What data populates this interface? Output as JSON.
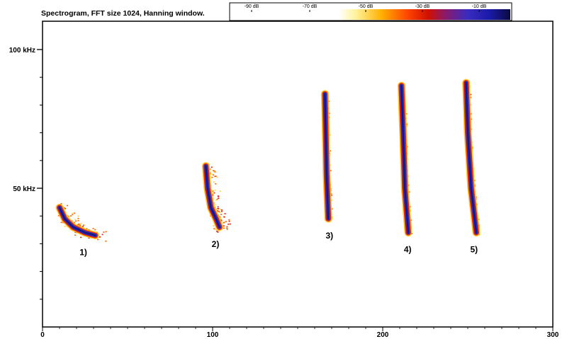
{
  "header": {
    "title": "Spectrogram, FFT size 1024, Hanning window.",
    "color_scale": {
      "labels": [
        "-90 dB",
        "-70 dB",
        "-50 dB",
        "-30 dB",
        "-10 dB"
      ],
      "colors": [
        "#ffffff",
        "#fff066",
        "#ffb000",
        "#ff4500",
        "#d21000",
        "#8a1a5a",
        "#3a2cc0",
        "#1a1aa8",
        "#0a0a40"
      ]
    }
  },
  "chart_data": {
    "type": "heatmap",
    "title": "Spectrogram, FFT size 1024, Hanning window.",
    "xlim": [
      0,
      300
    ],
    "ylim": [
      0,
      110
    ],
    "x_ticks": [
      "0",
      "100",
      "200",
      "300"
    ],
    "y_ticks": [
      "50 kHz",
      "100 kHz"
    ],
    "grid": false,
    "calls": [
      {
        "label": "1)",
        "x": [
          10,
          13,
          18,
          25,
          31
        ],
        "y": [
          43,
          39,
          36,
          34,
          33
        ]
      },
      {
        "label": "2)",
        "x": [
          96,
          97,
          99,
          102,
          104
        ],
        "y": [
          58,
          50,
          43,
          39,
          36
        ]
      },
      {
        "label": "3)",
        "x": [
          166,
          166.5,
          167,
          168
        ],
        "y": [
          84,
          70,
          55,
          39
        ]
      },
      {
        "label": "4)",
        "x": [
          211,
          212,
          213,
          215
        ],
        "y": [
          87,
          70,
          50,
          34
        ]
      },
      {
        "label": "5)",
        "x": [
          249,
          250,
          252,
          255
        ],
        "y": [
          88,
          70,
          50,
          34
        ]
      }
    ]
  }
}
